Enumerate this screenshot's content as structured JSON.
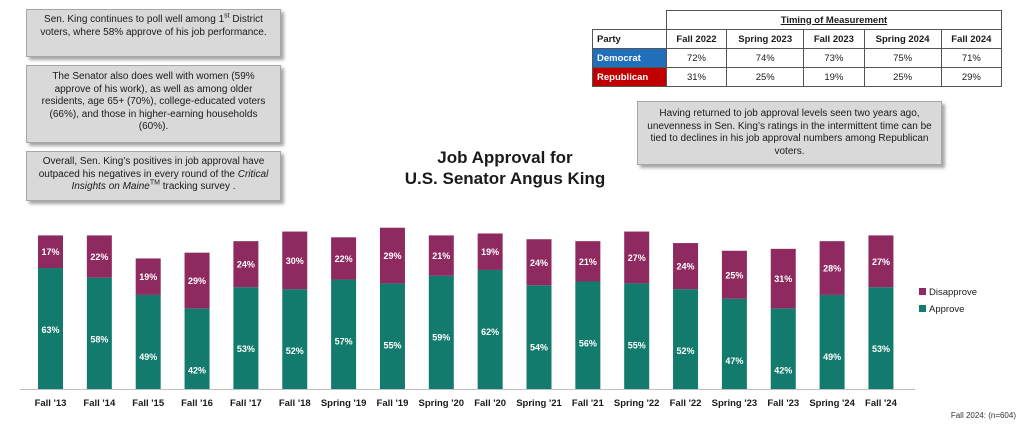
{
  "callouts": {
    "c1": {
      "pre": "Sen. King continues to poll well among 1",
      "sup": "st",
      "post": " District voters, where 58% approve of his job performance."
    },
    "c2": "The Senator also does well with women (59% approve of his work), as well as among older residents, age 65+ (70%), college-educated voters (66%), and those in higher-earning households (60%).",
    "c3": {
      "pre": "Overall, Sen. King’s positives in job approval have outpaced his negatives in every round of the ",
      "italic": "Critical Insights on Maine",
      "sup": "TM",
      "post": " tracking survey ."
    },
    "c4": "Having returned to job approval levels seen two years ago, unevenness in Sen. King’s ratings in the intermittent time can be tied to declines in his job approval numbers among Republican voters."
  },
  "timing_table": {
    "title": "Timing of Measurement",
    "party_header": "Party",
    "columns": [
      "Fall 2022",
      "Spring 2023",
      "Fall 2023",
      "Spring 2024",
      "Fall 2024"
    ],
    "rows": [
      {
        "party": "Democrat",
        "values": [
          "72%",
          "74%",
          "73%",
          "75%",
          "71%"
        ]
      },
      {
        "party": "Republican",
        "values": [
          "31%",
          "25%",
          "19%",
          "25%",
          "29%"
        ]
      }
    ]
  },
  "footnote": "Fall 2024: (n=604)",
  "colors": {
    "approve": "#137a6e",
    "disapprove": "#8e2a5f",
    "democrat": "#1f6fba",
    "republican": "#c00000"
  },
  "chart_data": {
    "type": "bar",
    "stacked": true,
    "title": [
      "Job Approval for",
      "U.S. Senator Angus King"
    ],
    "categories": [
      "Fall '13",
      "Fall '14",
      "Fall '15",
      "Fall '16",
      "Fall '17",
      "Fall '18",
      "Spring '19",
      "Fall '19",
      "Spring '20",
      "Fall '20",
      "Spring '21",
      "Fall '21",
      "Spring '22",
      "Fall '22",
      "Spring '23",
      "Fall '23",
      "Spring '24",
      "Fall '24"
    ],
    "series": [
      {
        "name": "Approve",
        "values": [
          63,
          58,
          49,
          42,
          53,
          52,
          57,
          55,
          59,
          62,
          54,
          56,
          55,
          52,
          47,
          42,
          49,
          53
        ]
      },
      {
        "name": "Disapprove",
        "values": [
          17,
          22,
          19,
          29,
          24,
          30,
          22,
          29,
          21,
          19,
          24,
          21,
          27,
          24,
          25,
          31,
          28,
          27
        ]
      }
    ],
    "legend": [
      "Disapprove",
      "Approve"
    ],
    "legend_position": "right",
    "ylim": [
      0,
      100
    ],
    "value_suffix": "%"
  }
}
